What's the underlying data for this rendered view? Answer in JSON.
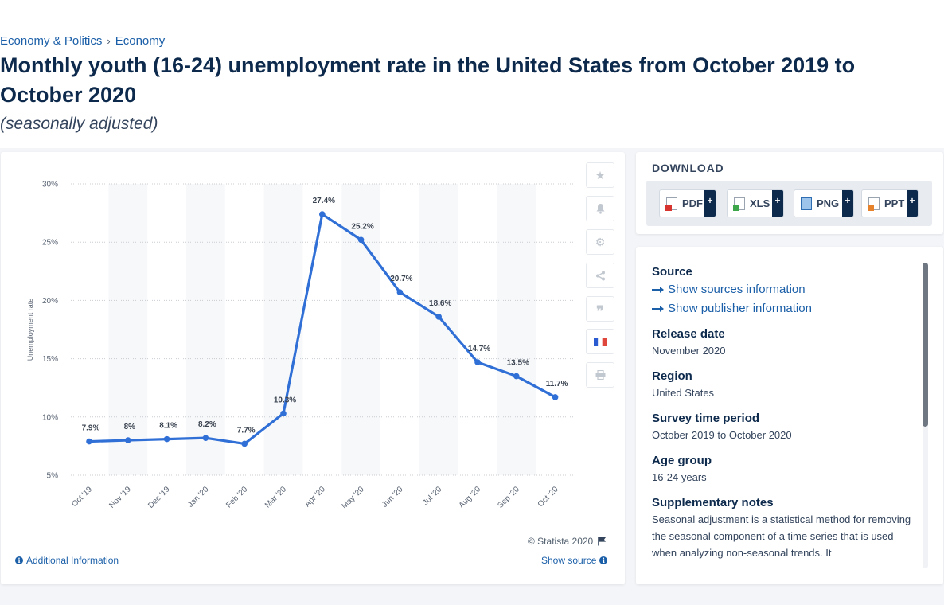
{
  "breadcrumb": {
    "item1": "Economy & Politics",
    "separator": "›",
    "item2": "Economy"
  },
  "page_title": "Monthly youth (16-24) unemployment rate in the United States from October 2019 to October 2020",
  "subtitle": "(seasonally adjusted)",
  "chart_data": {
    "type": "line",
    "categories": [
      "Oct '19",
      "Nov '19",
      "Dec '19",
      "Jan '20",
      "Feb '20",
      "Mar '20",
      "Apr '20",
      "May '20",
      "Jun '20",
      "Jul '20",
      "Aug '20",
      "Sep '20",
      "Oct '20"
    ],
    "values": [
      7.9,
      8,
      8.1,
      8.2,
      7.7,
      10.3,
      27.4,
      25.2,
      20.7,
      18.6,
      14.7,
      13.5,
      11.7
    ],
    "data_labels": [
      "7.9%",
      "8%",
      "8.1%",
      "8.2%",
      "7.7%",
      "10.3%",
      "27.4%",
      "25.2%",
      "20.7%",
      "18.6%",
      "14.7%",
      "13.5%",
      "11.7%"
    ],
    "ylabel": "Unemployment rate",
    "yticks": [
      "5%",
      "10%",
      "15%",
      "20%",
      "25%",
      "30%"
    ],
    "ytick_values": [
      5,
      10,
      15,
      20,
      25,
      30
    ],
    "ylim": [
      5,
      30
    ],
    "line_color": "#2f6fd6",
    "grid": "horizontal dotted, alternating column bands"
  },
  "toolbar": {
    "icons": [
      "star-icon",
      "bell-icon",
      "gear-icon",
      "share-icon",
      "quote-icon",
      "french-flag-icon",
      "print-icon"
    ]
  },
  "chart_footer": {
    "copyright": "© Statista 2020",
    "additional_info": "Additional Information",
    "show_source": "Show source"
  },
  "download": {
    "title": "DOWNLOAD",
    "buttons": [
      {
        "label": "PDF",
        "plus": "+"
      },
      {
        "label": "XLS",
        "plus": "+"
      },
      {
        "label": "PNG",
        "plus": "+"
      },
      {
        "label": "PPT",
        "plus": "+"
      }
    ]
  },
  "info": {
    "source_head": "Source",
    "show_sources": "Show sources information",
    "show_publisher": "Show publisher information",
    "release_head": "Release date",
    "release_val": "November 2020",
    "region_head": "Region",
    "region_val": "United States",
    "survey_head": "Survey time period",
    "survey_val": "October 2019 to October 2020",
    "age_head": "Age group",
    "age_val": "16-24 years",
    "notes_head": "Supplementary notes",
    "notes_val": "Seasonal adjustment is a statistical method for removing the seasonal component of a time series that is used when analyzing non-seasonal trends. It"
  }
}
